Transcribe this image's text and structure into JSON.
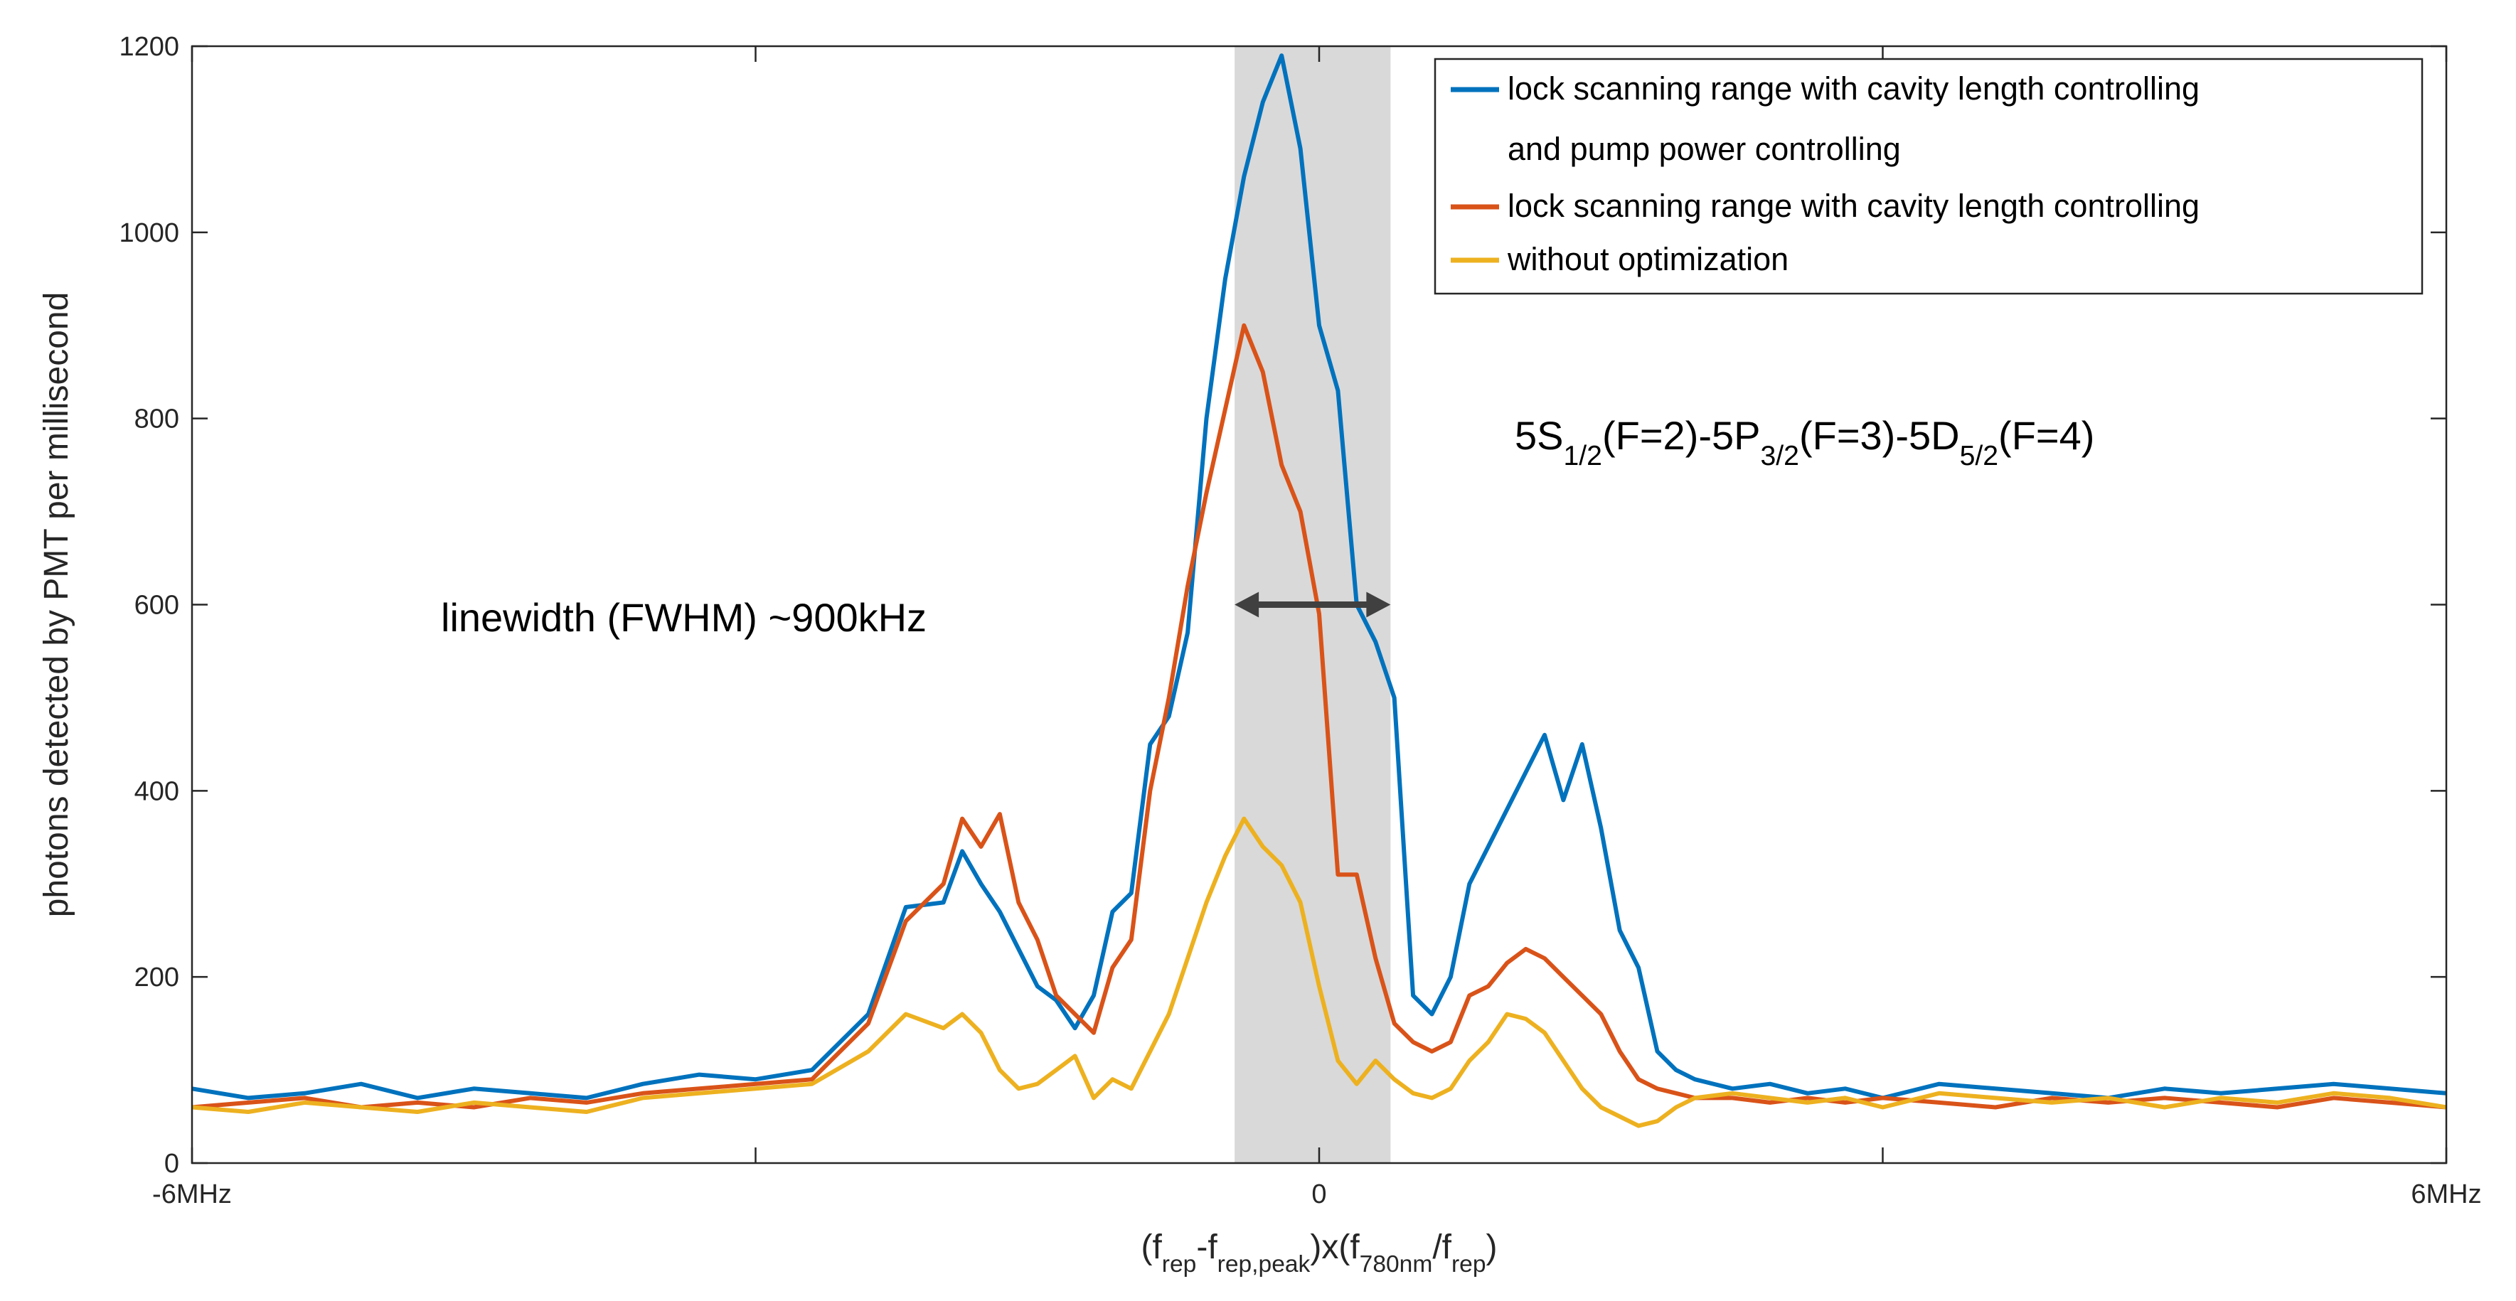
{
  "chart_data": {
    "type": "line",
    "xlabel": {
      "parts": [
        {
          "t": "(f",
          "s": 0
        },
        {
          "t": "rep",
          "s": 1
        },
        {
          "t": "-f",
          "s": 0
        },
        {
          "t": "rep,peak",
          "s": 1
        },
        {
          "t": ")x(f",
          "s": 0
        },
        {
          "t": "780nm",
          "s": 1
        },
        {
          "t": "/f",
          "s": 0
        },
        {
          "t": "rep",
          "s": 1
        },
        {
          "t": ")",
          "s": 0
        }
      ]
    },
    "ylabel": "photons detected by PMT per millisecond",
    "xlim": [
      -6,
      6
    ],
    "ylim": [
      0,
      1200
    ],
    "x_ticks": [
      {
        "v": -6,
        "label": "-6MHz"
      },
      {
        "v": 0,
        "label": "0"
      },
      {
        "v": 6,
        "label": "6MHz"
      }
    ],
    "x_minor_ticks": [
      -3,
      3
    ],
    "y_ticks": [
      0,
      200,
      400,
      600,
      800,
      1000,
      1200
    ],
    "shaded_region": {
      "x_range": [
        -0.45,
        0.38
      ],
      "color": "#d9d9d9"
    },
    "series": [
      {
        "name": "lock scanning range with cavity length controlling",
        "name_line2": "and pump power controlling",
        "color": "#0072bd",
        "x": [
          -6,
          -5.7,
          -5.4,
          -5.1,
          -4.8,
          -4.5,
          -4.2,
          -3.9,
          -3.6,
          -3.3,
          -3.0,
          -2.7,
          -2.4,
          -2.2,
          -2.0,
          -1.9,
          -1.8,
          -1.7,
          -1.6,
          -1.5,
          -1.4,
          -1.3,
          -1.2,
          -1.1,
          -1.0,
          -0.9,
          -0.8,
          -0.7,
          -0.6,
          -0.5,
          -0.4,
          -0.3,
          -0.2,
          -0.1,
          0,
          0.1,
          0.2,
          0.3,
          0.4,
          0.5,
          0.6,
          0.7,
          0.8,
          0.9,
          1.0,
          1.1,
          1.2,
          1.3,
          1.4,
          1.5,
          1.6,
          1.7,
          1.8,
          1.9,
          2.0,
          2.2,
          2.4,
          2.6,
          2.8,
          3.0,
          3.3,
          3.6,
          3.9,
          4.2,
          4.5,
          4.8,
          5.1,
          5.4,
          5.7,
          6.0
        ],
        "y": [
          80,
          70,
          75,
          85,
          70,
          80,
          75,
          70,
          85,
          95,
          90,
          100,
          160,
          275,
          280,
          335,
          300,
          270,
          230,
          190,
          175,
          145,
          180,
          270,
          290,
          450,
          480,
          570,
          800,
          950,
          1060,
          1140,
          1190,
          1090,
          900,
          830,
          600,
          560,
          500,
          180,
          160,
          200,
          300,
          340,
          380,
          420,
          460,
          390,
          450,
          360,
          250,
          210,
          120,
          100,
          90,
          80,
          85,
          75,
          80,
          70,
          85,
          80,
          75,
          70,
          80,
          75,
          80,
          85,
          80,
          75
        ]
      },
      {
        "name": "lock scanning range with cavity length controlling",
        "color": "#d95319",
        "x": [
          -6,
          -5.7,
          -5.4,
          -5.1,
          -4.8,
          -4.5,
          -4.2,
          -3.9,
          -3.6,
          -3.3,
          -3.0,
          -2.7,
          -2.4,
          -2.2,
          -2.0,
          -1.9,
          -1.8,
          -1.7,
          -1.6,
          -1.5,
          -1.4,
          -1.3,
          -1.2,
          -1.1,
          -1.0,
          -0.9,
          -0.8,
          -0.7,
          -0.6,
          -0.5,
          -0.4,
          -0.3,
          -0.2,
          -0.1,
          0,
          0.1,
          0.2,
          0.3,
          0.4,
          0.5,
          0.6,
          0.7,
          0.8,
          0.9,
          1.0,
          1.1,
          1.2,
          1.3,
          1.4,
          1.5,
          1.6,
          1.7,
          1.8,
          1.9,
          2.0,
          2.2,
          2.4,
          2.6,
          2.8,
          3.0,
          3.3,
          3.6,
          3.9,
          4.2,
          4.5,
          4.8,
          5.1,
          5.4,
          5.7,
          6.0
        ],
        "y": [
          60,
          65,
          70,
          60,
          65,
          60,
          70,
          65,
          75,
          80,
          85,
          90,
          150,
          260,
          300,
          370,
          340,
          375,
          280,
          240,
          180,
          160,
          140,
          210,
          240,
          400,
          500,
          620,
          720,
          810,
          900,
          850,
          750,
          700,
          590,
          310,
          310,
          220,
          150,
          130,
          120,
          130,
          180,
          190,
          215,
          230,
          220,
          200,
          180,
          160,
          120,
          90,
          80,
          75,
          70,
          70,
          65,
          70,
          65,
          70,
          65,
          60,
          70,
          65,
          70,
          65,
          60,
          70,
          65,
          60
        ]
      },
      {
        "name": "without optimization",
        "color": "#edb120",
        "x": [
          -6,
          -5.7,
          -5.4,
          -5.1,
          -4.8,
          -4.5,
          -4.2,
          -3.9,
          -3.6,
          -3.3,
          -3.0,
          -2.7,
          -2.4,
          -2.2,
          -2.0,
          -1.9,
          -1.8,
          -1.7,
          -1.6,
          -1.5,
          -1.4,
          -1.3,
          -1.2,
          -1.1,
          -1.0,
          -0.9,
          -0.8,
          -0.7,
          -0.6,
          -0.5,
          -0.4,
          -0.3,
          -0.2,
          -0.1,
          0,
          0.1,
          0.2,
          0.3,
          0.4,
          0.5,
          0.6,
          0.7,
          0.8,
          0.9,
          1.0,
          1.1,
          1.2,
          1.3,
          1.4,
          1.5,
          1.6,
          1.7,
          1.8,
          1.9,
          2.0,
          2.2,
          2.4,
          2.6,
          2.8,
          3.0,
          3.3,
          3.6,
          3.9,
          4.2,
          4.5,
          4.8,
          5.1,
          5.4,
          5.7,
          6.0
        ],
        "y": [
          60,
          55,
          65,
          60,
          55,
          65,
          60,
          55,
          70,
          75,
          80,
          85,
          120,
          160,
          145,
          160,
          140,
          100,
          80,
          85,
          100,
          115,
          70,
          90,
          80,
          120,
          160,
          220,
          280,
          330,
          370,
          340,
          320,
          280,
          190,
          110,
          85,
          110,
          90,
          75,
          70,
          80,
          110,
          130,
          160,
          155,
          140,
          110,
          80,
          60,
          50,
          40,
          45,
          60,
          70,
          75,
          70,
          65,
          70,
          60,
          75,
          70,
          65,
          70,
          60,
          70,
          65,
          75,
          70,
          60
        ]
      }
    ],
    "legend": {
      "location": "top-right"
    },
    "annotations": {
      "linewidth": "linewidth (FWHM) ~900kHz",
      "transition_parts": [
        {
          "t": "5S",
          "s": 0
        },
        {
          "t": "1/2",
          "s": 1
        },
        {
          "t": "(F=2)-5P",
          "s": 0
        },
        {
          "t": "3/2",
          "s": 1
        },
        {
          "t": "(F=3)-5D",
          "s": 0
        },
        {
          "t": "5/2",
          "s": 1
        },
        {
          "t": "(F=4)",
          "s": 0
        }
      ],
      "arrow_x_range": [
        -0.45,
        0.38
      ],
      "arrow_y": 600
    }
  }
}
